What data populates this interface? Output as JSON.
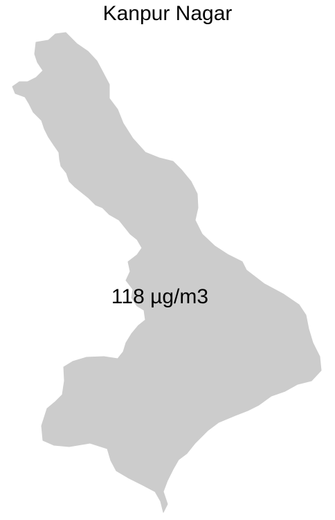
{
  "map": {
    "title": "Kanpur Nagar",
    "region_fill": "#cccccc",
    "background": "#ffffff",
    "value_label": "118 µg/m3"
  }
}
